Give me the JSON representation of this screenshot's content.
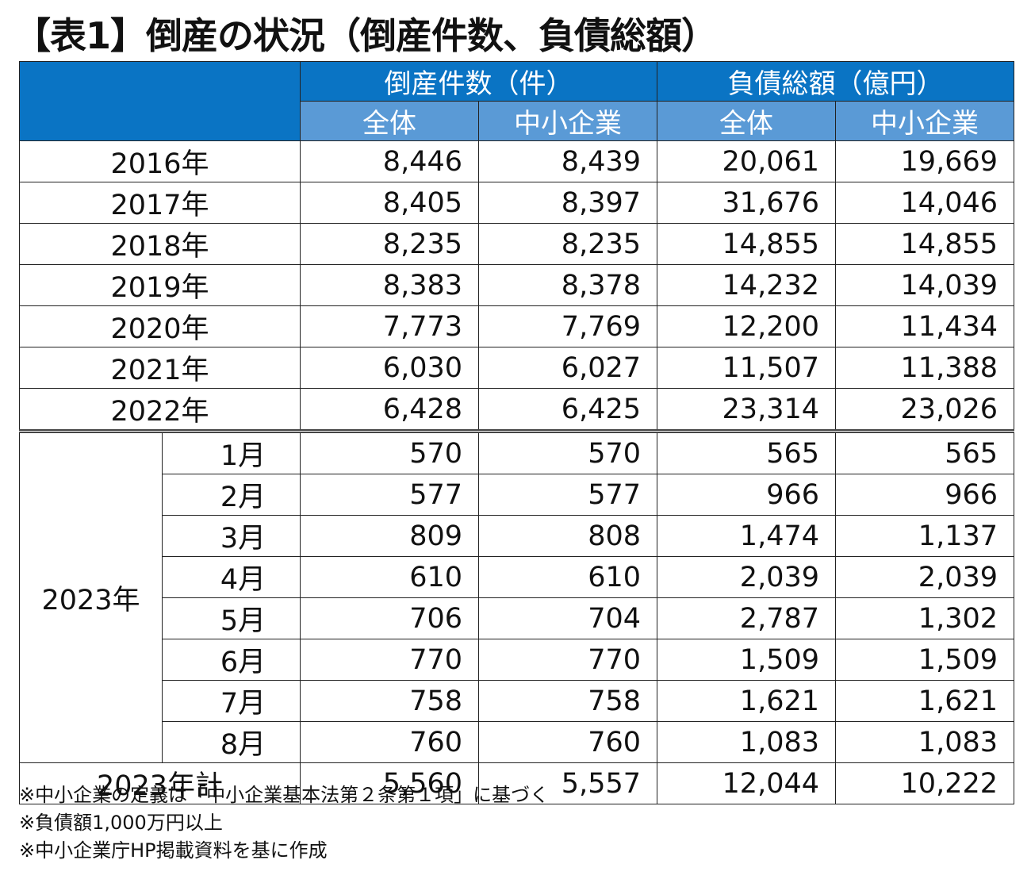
{
  "title": "【表1】倒産の状況（倒産件数、負債総額）",
  "table": {
    "group_headers": [
      "倒産件数（件）",
      "負債総額（億円）"
    ],
    "sub_headers": [
      "全体",
      "中小企業",
      "全体",
      "中小企業"
    ],
    "annual_rows": [
      {
        "label": "2016年",
        "values": [
          "8,446",
          "8,439",
          "20,061",
          "19,669"
        ]
      },
      {
        "label": "2017年",
        "values": [
          "8,405",
          "8,397",
          "31,676",
          "14,046"
        ]
      },
      {
        "label": "2018年",
        "values": [
          "8,235",
          "8,235",
          "14,855",
          "14,855"
        ]
      },
      {
        "label": "2019年",
        "values": [
          "8,383",
          "8,378",
          "14,232",
          "14,039"
        ]
      },
      {
        "label": "2020年",
        "values": [
          "7,773",
          "7,769",
          "12,200",
          "11,434"
        ]
      },
      {
        "label": "2021年",
        "values": [
          "6,030",
          "6,027",
          "11,507",
          "11,388"
        ]
      },
      {
        "label": "2022年",
        "values": [
          "6,428",
          "6,425",
          "23,314",
          "23,026"
        ]
      }
    ],
    "year_2023_label": "2023年",
    "monthly_rows": [
      {
        "label": "1月",
        "values": [
          "570",
          "570",
          "565",
          "565"
        ]
      },
      {
        "label": "2月",
        "values": [
          "577",
          "577",
          "966",
          "966"
        ]
      },
      {
        "label": "3月",
        "values": [
          "809",
          "808",
          "1,474",
          "1,137"
        ]
      },
      {
        "label": "4月",
        "values": [
          "610",
          "610",
          "2,039",
          "2,039"
        ]
      },
      {
        "label": "5月",
        "values": [
          "706",
          "704",
          "2,787",
          "1,302"
        ]
      },
      {
        "label": "6月",
        "values": [
          "770",
          "770",
          "1,509",
          "1,509"
        ]
      },
      {
        "label": "7月",
        "values": [
          "758",
          "758",
          "1,621",
          "1,621"
        ]
      },
      {
        "label": "8月",
        "values": [
          "760",
          "760",
          "1,083",
          "1,083"
        ]
      }
    ],
    "total_row": {
      "label": "2023年計",
      "values": [
        "5,560",
        "5,557",
        "12,044",
        "10,222"
      ]
    }
  },
  "notes": [
    "※中小企業の定義は「中小企業基本法第２条第１項」に基づく",
    "※負債額1,000万円以上",
    "※中小企業庁HP掲載資料を基に作成"
  ],
  "colors": {
    "header_blue": "#0a74c4",
    "subheader_blue": "#5a9ad6"
  }
}
